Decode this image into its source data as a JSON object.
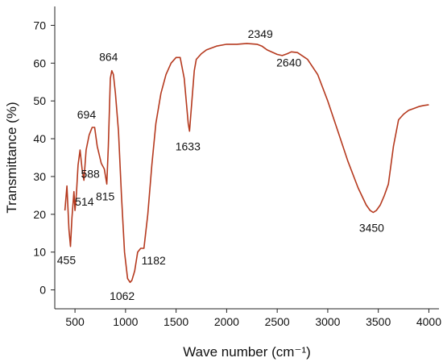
{
  "chart_data": {
    "type": "line",
    "title": "",
    "xlabel": "Wave number (cm⁻¹)",
    "ylabel": "Transmittance (%)",
    "xlim": [
      300,
      4100
    ],
    "ylim": [
      -5,
      75
    ],
    "x_ticks": [
      500,
      1000,
      1500,
      2000,
      2500,
      3000,
      3500,
      4000
    ],
    "y_ticks": [
      0,
      10,
      20,
      30,
      40,
      50,
      60,
      70
    ],
    "grid": false,
    "legend": "none",
    "line_color": "#b5391e",
    "series": [
      {
        "x": [
          400,
          420,
          440,
          455,
          470,
          490,
          500,
          514,
          530,
          550,
          570,
          588,
          610,
          640,
          670,
          694,
          720,
          760,
          790,
          815,
          830,
          850,
          864,
          880,
          900,
          930,
          960,
          990,
          1020,
          1045,
          1062,
          1090,
          1120,
          1150,
          1182,
          1220,
          1260,
          1300,
          1350,
          1400,
          1450,
          1500,
          1540,
          1580,
          1600,
          1620,
          1633,
          1650,
          1680,
          1700,
          1750,
          1800,
          1900,
          2000,
          2100,
          2200,
          2300,
          2349,
          2400,
          2500,
          2550,
          2600,
          2640,
          2700,
          2800,
          2900,
          3000,
          3100,
          3200,
          3300,
          3380,
          3420,
          3450,
          3480,
          3520,
          3560,
          3600,
          3650,
          3700,
          3750,
          3800,
          3850,
          3900,
          3950,
          4000
        ],
        "y": [
          21,
          27.5,
          16,
          11.5,
          19,
          26,
          21,
          25.5,
          33,
          37,
          32,
          29,
          37,
          41,
          43,
          43,
          38,
          33.5,
          32,
          28,
          38,
          56,
          58,
          57,
          52,
          42,
          25,
          10,
          3,
          2,
          2.5,
          5,
          10,
          11,
          11,
          20,
          33,
          44,
          52,
          57,
          60,
          61.5,
          61.5,
          56,
          50,
          44,
          42,
          48,
          58,
          61,
          62.5,
          63.5,
          64.5,
          65,
          65,
          65.2,
          65,
          64.5,
          63.5,
          62.3,
          62,
          62.5,
          63,
          62.8,
          61,
          57,
          50,
          42,
          34,
          27,
          22.5,
          21,
          20.5,
          21,
          22.5,
          25,
          28,
          38,
          45,
          46.5,
          47.5,
          48,
          48.5,
          48.8,
          49
        ]
      }
    ],
    "peak_labels": [
      {
        "text": "455",
        "x": 455
      },
      {
        "text": "514",
        "x": 514
      },
      {
        "text": "588",
        "x": 588
      },
      {
        "text": "694",
        "x": 694
      },
      {
        "text": "815",
        "x": 815
      },
      {
        "text": "864",
        "x": 864
      },
      {
        "text": "1062",
        "x": 1062
      },
      {
        "text": "1182",
        "x": 1182
      },
      {
        "text": "1633",
        "x": 1633
      },
      {
        "text": "2349",
        "x": 2349
      },
      {
        "text": "2640",
        "x": 2640
      },
      {
        "text": "3450",
        "x": 3450
      }
    ]
  }
}
